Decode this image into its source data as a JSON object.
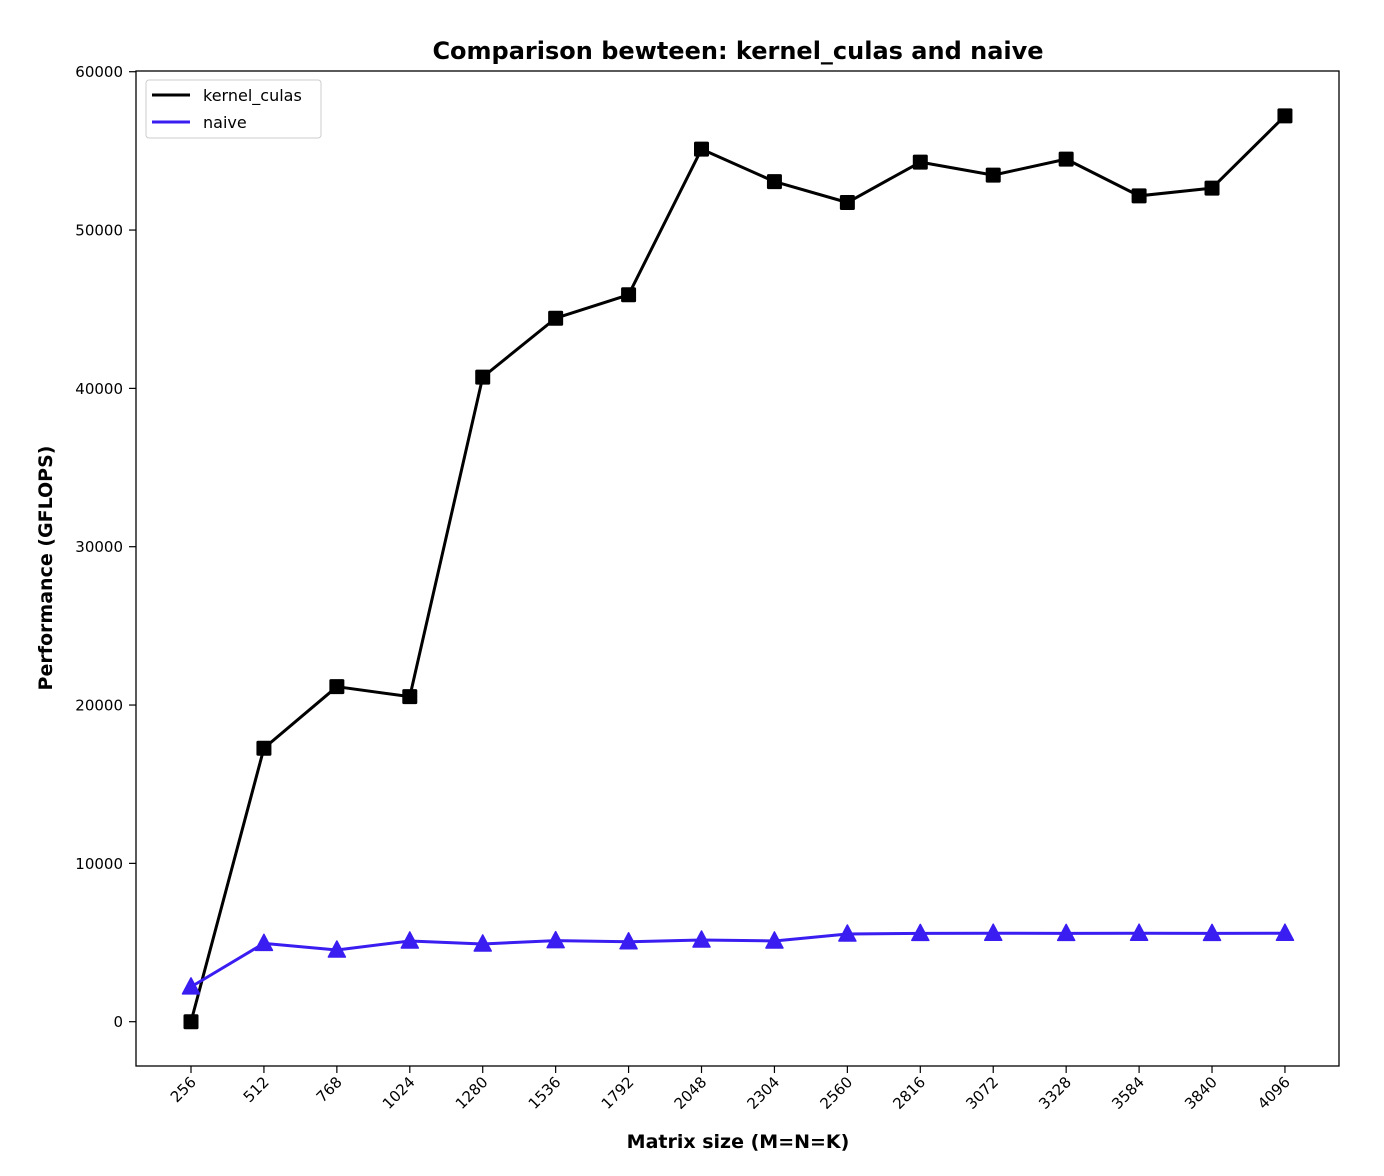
{
  "chart_data": {
    "type": "line",
    "title": "Comparison bewteen: kernel_culas and naive",
    "xlabel": "Matrix size (M=N=K)",
    "ylabel": "Performance (GFLOPS)",
    "categories": [
      "256",
      "512",
      "768",
      "1024",
      "1280",
      "1536",
      "1792",
      "2048",
      "2304",
      "2560",
      "2816",
      "3072",
      "3328",
      "3584",
      "3840",
      "4096"
    ],
    "series": [
      {
        "name": "kernel_culas",
        "color": "#000000",
        "marker": "square",
        "values": [
          0,
          17270,
          21160,
          20530,
          40710,
          44430,
          45910,
          55110,
          53060,
          51740,
          54290,
          53470,
          54480,
          52160,
          52650,
          57210
        ]
      },
      {
        "name": "naive",
        "color": "#3a1df0",
        "marker": "triangle",
        "values": [
          2200,
          4950,
          4530,
          5100,
          4910,
          5120,
          5050,
          5160,
          5100,
          5540,
          5580,
          5590,
          5580,
          5590,
          5580,
          5590
        ]
      }
    ],
    "ylim": [
      -2850,
      60000
    ],
    "yticks": [
      0,
      10000,
      20000,
      30000,
      40000,
      50000,
      60000
    ],
    "ytick_labels": [
      "0",
      "10000",
      "20000",
      "30000",
      "40000",
      "50000",
      "60000"
    ],
    "xtick_rotation": 45,
    "grid": false,
    "legend_position": "upper left"
  }
}
